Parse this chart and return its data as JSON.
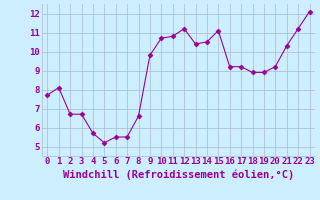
{
  "x": [
    0,
    1,
    2,
    3,
    4,
    5,
    6,
    7,
    8,
    9,
    10,
    11,
    12,
    13,
    14,
    15,
    16,
    17,
    18,
    19,
    20,
    21,
    22,
    23
  ],
  "y": [
    7.7,
    8.1,
    6.7,
    6.7,
    5.7,
    5.2,
    5.5,
    5.5,
    6.6,
    9.8,
    10.7,
    10.8,
    11.2,
    10.4,
    10.5,
    11.1,
    9.2,
    9.2,
    8.9,
    8.9,
    9.2,
    10.3,
    11.2,
    12.1
  ],
  "line_color": "#990099",
  "marker_color": "#990099",
  "bg_color": "#cceeff",
  "grid_color": "#aabbcc",
  "xlabel": "Windchill (Refroidissement éolien,°C)",
  "xlim": [
    -0.5,
    23.5
  ],
  "ylim": [
    4.5,
    12.5
  ],
  "yticks": [
    5,
    6,
    7,
    8,
    9,
    10,
    11,
    12
  ],
  "xticks": [
    0,
    1,
    2,
    3,
    4,
    5,
    6,
    7,
    8,
    9,
    10,
    11,
    12,
    13,
    14,
    15,
    16,
    17,
    18,
    19,
    20,
    21,
    22,
    23
  ],
  "xlabel_color": "#990099",
  "tick_color": "#990099",
  "font_size": 6.5,
  "xlabel_font_size": 7.5
}
